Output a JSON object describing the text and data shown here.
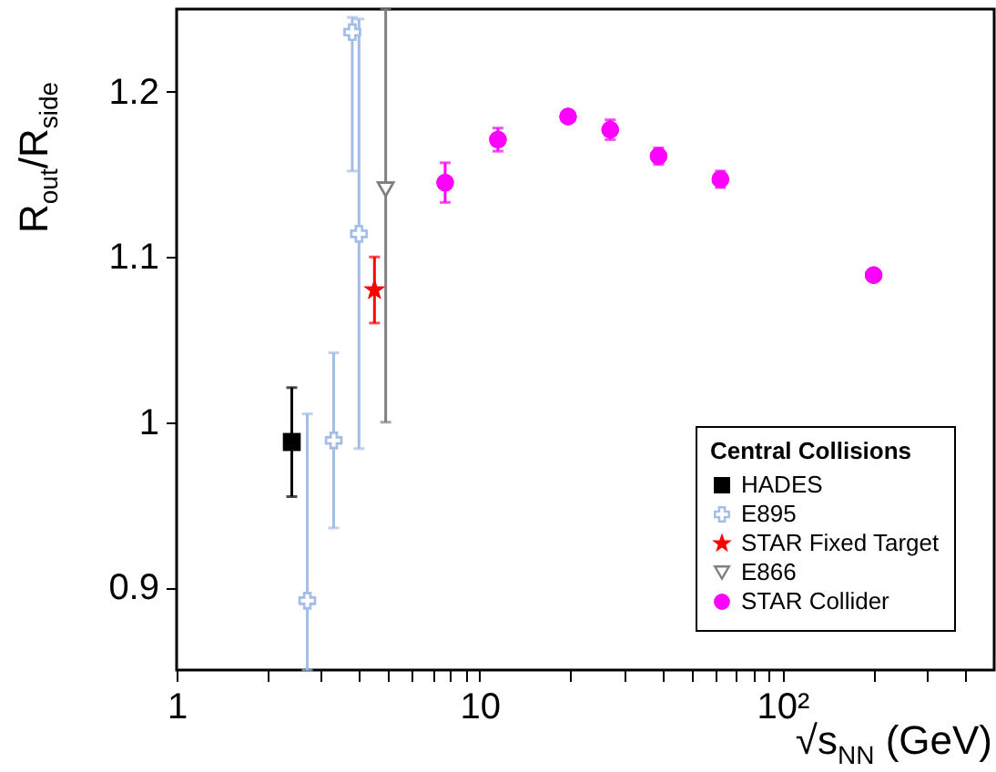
{
  "chart_data": {
    "type": "scatter",
    "xlabel": "√s$_{NN}$ (GeV)",
    "ylabel": "R$_{out}$/R$_{side}$",
    "legend_title": "Central Collisions",
    "legend": "bottom right",
    "log": "x",
    "grid": false,
    "xlim": [
      1,
      500
    ],
    "ylim": [
      0.85,
      1.25
    ],
    "xticks": [
      1,
      {
        "value": 2,
        "label": null
      },
      {
        "value": 3,
        "label": null
      },
      {
        "value": 4,
        "label": null
      },
      {
        "value": 5,
        "label": null
      },
      {
        "value": 6,
        "label": null
      },
      {
        "value": 7,
        "label": null
      },
      {
        "value": 8,
        "label": null
      },
      {
        "value": 9,
        "label": null
      },
      10,
      {
        "value": 20,
        "label": null
      },
      {
        "value": 30,
        "label": null
      },
      {
        "value": 40,
        "label": null
      },
      {
        "value": 50,
        "label": null
      },
      {
        "value": 60,
        "label": null
      },
      {
        "value": 70,
        "label": null
      },
      {
        "value": 80,
        "label": null
      },
      {
        "value": 90,
        "label": null
      },
      {
        "value": 100,
        "label": "10²"
      },
      {
        "value": 200,
        "label": null
      },
      {
        "value": 300,
        "label": null
      },
      {
        "value": 400,
        "label": null
      }
    ],
    "yticks": [
      0.9,
      1,
      1.1,
      1.2
    ],
    "series": [
      {
        "name": "HADES",
        "color": "#000000",
        "marker": "square",
        "x": [
          2.4
        ],
        "values": [
          0.988
        ],
        "errors": [
          0.033
        ]
      },
      {
        "name": "E895",
        "color": "#a4bde6",
        "marker": "cross",
        "x": [
          2.7,
          3.3,
          3.8,
          4.0
        ],
        "values": [
          0.892,
          0.989,
          1.236,
          1.114
        ],
        "errors": [
          [
            0.85,
            1.005
          ],
          0.053,
          [
            1.152,
            1.245
          ],
          0.13
        ]
      },
      {
        "name": "STAR Fixed Target",
        "color": "#ff0000",
        "marker": "star",
        "x": [
          4.5
        ],
        "values": [
          1.08
        ],
        "errors": [
          0.02
        ]
      },
      {
        "name": "E866",
        "color": "#808080",
        "marker": "triangle-down",
        "x": [
          4.9
        ],
        "values": [
          1.141
        ],
        "errors": [
          [
            1.0,
            1.25
          ]
        ]
      },
      {
        "name": "STAR Collider",
        "color": "#ff00ff",
        "marker": "circle",
        "x": [
          7.7,
          11.5,
          19.6,
          27,
          39,
          62.4,
          200
        ],
        "values": [
          1.145,
          1.171,
          1.185,
          1.177,
          1.161,
          1.147,
          1.089
        ],
        "errors": [
          0.012,
          0.007,
          null,
          0.006,
          0.005,
          0.005,
          null
        ]
      }
    ]
  }
}
